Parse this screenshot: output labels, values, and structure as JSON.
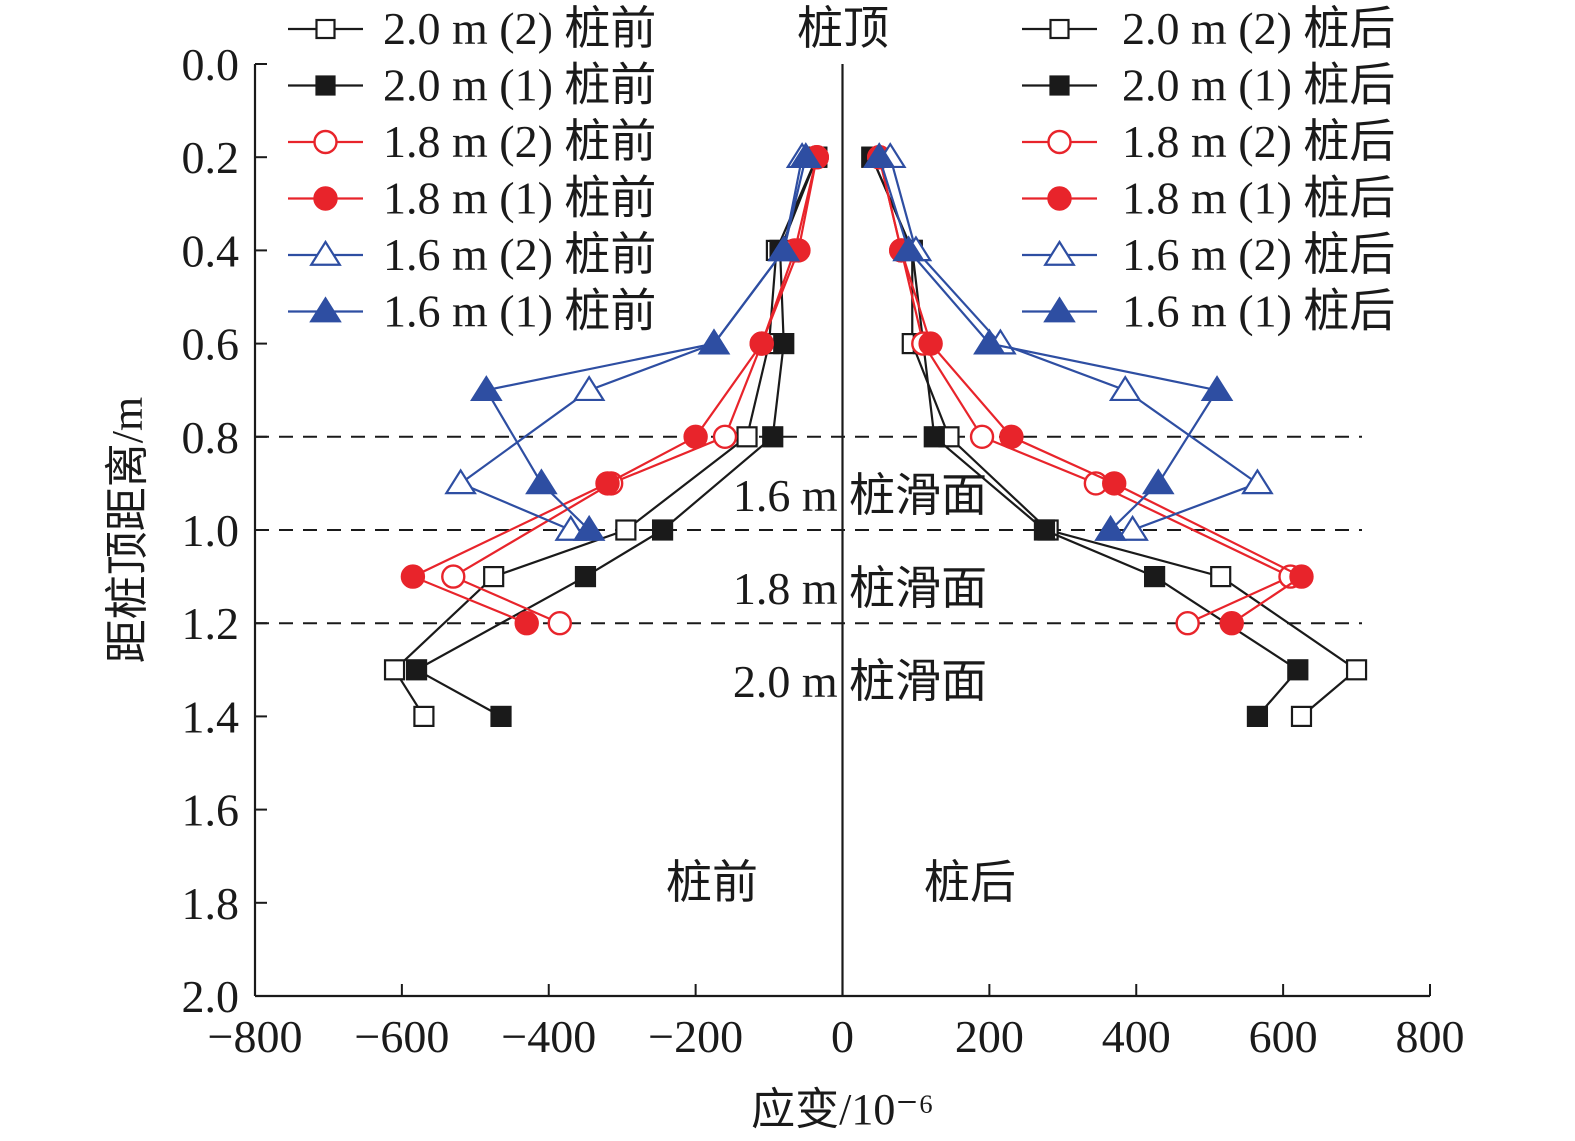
{
  "chart_data": {
    "type": "line",
    "title": "",
    "xlabel": "应变/10⁻⁶",
    "ylabel": "距桩顶距离/m",
    "xlim": [
      -800,
      800
    ],
    "ylim": [
      0.0,
      2.0
    ],
    "y_inverted": true,
    "xticks": [
      "−800",
      "−600",
      "−400",
      "−200",
      "0",
      "200",
      "400",
      "600",
      "800"
    ],
    "yticks": [
      "0.0",
      "0.2",
      "0.4",
      "0.6",
      "0.8",
      "1.0",
      "1.2",
      "1.4",
      "1.6",
      "1.8",
      "2.0"
    ],
    "grid": false,
    "legend": "top-left and top-right",
    "colors": {
      "black": "#1a1a1a",
      "red": "#e8242b",
      "blue": "#2e4ea2"
    },
    "reference_lines": [
      {
        "y": 0.8,
        "label": "1.6 m 桩滑面"
      },
      {
        "y": 1.0,
        "label": "1.8 m 桩滑面"
      },
      {
        "y": 1.2,
        "label": "2.0 m 桩滑面"
      }
    ],
    "annotations": {
      "top": "桩顶",
      "front": "桩前",
      "back": "桩后"
    },
    "series": [
      {
        "name": "2.0 m (2) 桩前",
        "color": "black",
        "marker": "square-open",
        "points": [
          [
            -35,
            0.2
          ],
          [
            -90,
            0.4
          ],
          [
            -100,
            0.6
          ],
          [
            -130,
            0.8
          ],
          [
            -295,
            1.0
          ],
          [
            -475,
            1.1
          ],
          [
            -610,
            1.3
          ],
          [
            -570,
            1.4
          ]
        ]
      },
      {
        "name": "2.0 m (1) 桩前",
        "color": "black",
        "marker": "square-filled",
        "points": [
          [
            -35,
            0.2
          ],
          [
            -85,
            0.4
          ],
          [
            -80,
            0.6
          ],
          [
            -95,
            0.8
          ],
          [
            -245,
            1.0
          ],
          [
            -350,
            1.1
          ],
          [
            -580,
            1.3
          ],
          [
            -465,
            1.4
          ]
        ]
      },
      {
        "name": "1.8 m (2) 桩前",
        "color": "red",
        "marker": "circle-open",
        "points": [
          [
            -35,
            0.2
          ],
          [
            -65,
            0.4
          ],
          [
            -110,
            0.6
          ],
          [
            -160,
            0.8
          ],
          [
            -315,
            0.9
          ],
          [
            -530,
            1.1
          ],
          [
            -385,
            1.2
          ]
        ]
      },
      {
        "name": "1.8 m (1) 桩前",
        "color": "red",
        "marker": "circle-filled",
        "points": [
          [
            -35,
            0.2
          ],
          [
            -60,
            0.4
          ],
          [
            -110,
            0.6
          ],
          [
            -200,
            0.8
          ],
          [
            -320,
            0.9
          ],
          [
            -585,
            1.1
          ],
          [
            -430,
            1.2
          ]
        ]
      },
      {
        "name": "1.6 m (2) 桩前",
        "color": "blue",
        "marker": "triangle-open",
        "points": [
          [
            -55,
            0.2
          ],
          [
            -80,
            0.4
          ],
          [
            -175,
            0.6
          ],
          [
            -345,
            0.7
          ],
          [
            -520,
            0.9
          ],
          [
            -370,
            1.0
          ]
        ]
      },
      {
        "name": "1.6 m (1) 桩前",
        "color": "blue",
        "marker": "triangle-filled",
        "points": [
          [
            -50,
            0.2
          ],
          [
            -80,
            0.4
          ],
          [
            -175,
            0.6
          ],
          [
            -485,
            0.7
          ],
          [
            -410,
            0.9
          ],
          [
            -345,
            1.0
          ]
        ]
      },
      {
        "name": "2.0 m (2) 桩后",
        "color": "black",
        "marker": "square-open",
        "points": [
          [
            40,
            0.2
          ],
          [
            95,
            0.4
          ],
          [
            95,
            0.6
          ],
          [
            145,
            0.8
          ],
          [
            280,
            1.0
          ],
          [
            515,
            1.1
          ],
          [
            700,
            1.3
          ],
          [
            625,
            1.4
          ]
        ]
      },
      {
        "name": "2.0 m (1) 桩后",
        "color": "black",
        "marker": "square-filled",
        "points": [
          [
            40,
            0.2
          ],
          [
            95,
            0.4
          ],
          [
            110,
            0.6
          ],
          [
            125,
            0.8
          ],
          [
            275,
            1.0
          ],
          [
            425,
            1.1
          ],
          [
            620,
            1.3
          ],
          [
            565,
            1.4
          ]
        ]
      },
      {
        "name": "1.8 m (2) 桩后",
        "color": "red",
        "marker": "circle-open",
        "points": [
          [
            50,
            0.2
          ],
          [
            80,
            0.4
          ],
          [
            110,
            0.6
          ],
          [
            190,
            0.8
          ],
          [
            345,
            0.9
          ],
          [
            610,
            1.1
          ],
          [
            470,
            1.2
          ]
        ]
      },
      {
        "name": "1.8 m (1) 桩后",
        "color": "red",
        "marker": "circle-filled",
        "points": [
          [
            50,
            0.2
          ],
          [
            80,
            0.4
          ],
          [
            120,
            0.6
          ],
          [
            230,
            0.8
          ],
          [
            370,
            0.9
          ],
          [
            625,
            1.1
          ],
          [
            530,
            1.2
          ]
        ]
      },
      {
        "name": "1.6 m (2) 桩后",
        "color": "blue",
        "marker": "triangle-open",
        "points": [
          [
            65,
            0.2
          ],
          [
            100,
            0.4
          ],
          [
            215,
            0.6
          ],
          [
            385,
            0.7
          ],
          [
            565,
            0.9
          ],
          [
            395,
            1.0
          ]
        ]
      },
      {
        "name": "1.6 m (1) 桩后",
        "color": "blue",
        "marker": "triangle-filled",
        "points": [
          [
            50,
            0.2
          ],
          [
            90,
            0.4
          ],
          [
            200,
            0.6
          ],
          [
            510,
            0.7
          ],
          [
            430,
            0.9
          ],
          [
            365,
            1.0
          ]
        ]
      }
    ]
  }
}
